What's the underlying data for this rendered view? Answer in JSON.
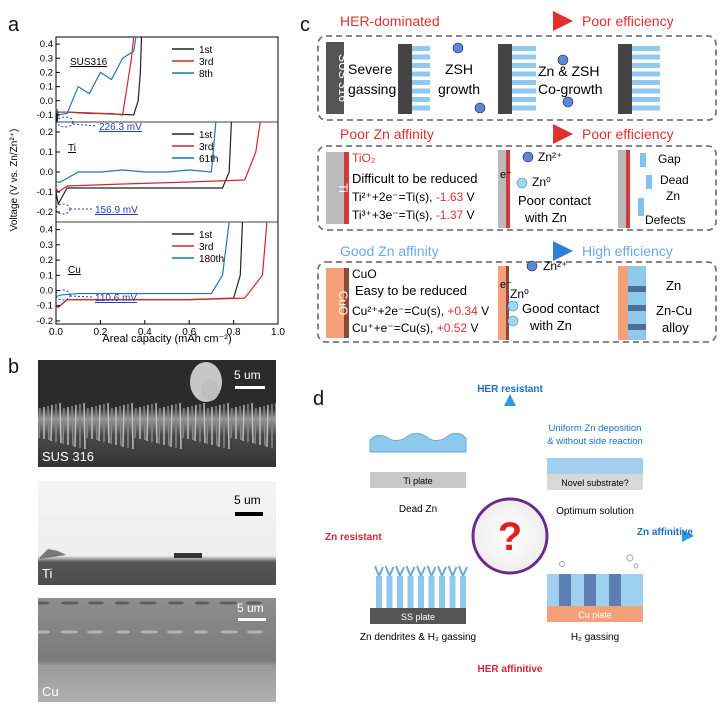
{
  "panel_labels": {
    "a": "a",
    "b": "b",
    "c": "c",
    "d": "d"
  },
  "panel_a": {
    "y_axis_label": "Voltage (V vs. Zn/Zn²⁺)",
    "x_axis_label": "Areal capacity (mAh cm⁻²)",
    "x_ticks": [
      "0.0",
      "0.2",
      "0.4",
      "0.6",
      "0.8",
      "1.0"
    ],
    "y_ticks_sus": [
      "0.4",
      "0.3",
      "0.2",
      "0.1",
      "0.0",
      "-0.1"
    ],
    "y_ticks_ti": [
      "0.2",
      "0.1",
      "0.0",
      "-0.1",
      "-0.2"
    ],
    "y_ticks_cu": [
      "0.4",
      "0.3",
      "0.2",
      "0.1",
      "0.0",
      "-0.1",
      "-0.2"
    ],
    "subplots": [
      {
        "name": "SUS316",
        "annotation": "226.3 mV",
        "legend": [
          "1st",
          "3rd",
          "8th"
        ]
      },
      {
        "name": "Ti",
        "annotation": "156.9 mV",
        "legend": [
          "1st",
          "3rd",
          "61th"
        ]
      },
      {
        "name": "Cu",
        "annotation": "110.6 mV",
        "legend": [
          "1st",
          "3rd",
          "180th"
        ]
      }
    ],
    "colors": {
      "first": "#222222",
      "third": "#d62728",
      "last": "#1f77b4",
      "annotation": "#1f3fbf"
    }
  },
  "chart_data": [
    {
      "type": "line",
      "title": "SUS316",
      "xlabel": "Areal capacity (mAh cm⁻²)",
      "ylabel": "Voltage (V vs. Zn/Zn²⁺)",
      "xlim": [
        0,
        1.0
      ],
      "ylim": [
        -0.15,
        0.45
      ],
      "series": [
        {
          "name": "1st",
          "x": [
            0.0,
            0.005,
            0.01,
            0.05,
            0.2,
            0.35,
            0.37,
            0.38,
            0.385
          ],
          "y": [
            -0.05,
            -0.2,
            -0.08,
            -0.08,
            -0.09,
            -0.1,
            0.0,
            0.2,
            0.45
          ]
        },
        {
          "name": "3rd",
          "x": [
            0.0,
            0.01,
            0.05,
            0.15,
            0.25,
            0.3,
            0.32,
            0.34,
            0.35
          ],
          "y": [
            -0.05,
            -0.08,
            -0.08,
            -0.09,
            -0.09,
            -0.1,
            0.1,
            0.3,
            0.45
          ]
        },
        {
          "name": "8th",
          "x": [
            0.0,
            0.01,
            0.05,
            0.1,
            0.15,
            0.2,
            0.25,
            0.3,
            0.35,
            0.36
          ],
          "y": [
            -0.05,
            -0.1,
            -0.09,
            0.1,
            0.05,
            0.2,
            0.15,
            0.3,
            0.35,
            0.45
          ]
        }
      ]
    },
    {
      "type": "line",
      "title": "Ti",
      "xlabel": "Areal capacity (mAh cm⁻²)",
      "ylabel": "Voltage (V vs. Zn/Zn²⁺)",
      "xlim": [
        0,
        1.0
      ],
      "ylim": [
        -0.25,
        0.25
      ],
      "series": [
        {
          "name": "1st",
          "x": [
            0.0,
            0.01,
            0.05,
            0.3,
            0.6,
            0.75,
            0.78,
            0.79
          ],
          "y": [
            -0.1,
            -0.16,
            -0.08,
            -0.08,
            -0.08,
            -0.08,
            0.0,
            0.25
          ]
        },
        {
          "name": "3rd",
          "x": [
            0.0,
            0.01,
            0.05,
            0.3,
            0.6,
            0.85,
            0.9,
            0.92
          ],
          "y": [
            -0.08,
            -0.1,
            -0.07,
            -0.06,
            -0.05,
            -0.04,
            0.1,
            0.25
          ]
        },
        {
          "name": "61th",
          "x": [
            0.0,
            0.02,
            0.1,
            0.2,
            0.3,
            0.4,
            0.5,
            0.6,
            0.7,
            0.72
          ],
          "y": [
            -0.05,
            -0.05,
            0.0,
            0.0,
            0.01,
            0.0,
            0.0,
            0.01,
            0.0,
            0.25
          ]
        }
      ]
    },
    {
      "type": "line",
      "title": "Cu",
      "xlabel": "Areal capacity (mAh cm⁻²)",
      "ylabel": "Voltage (V vs. Zn/Zn²⁺)",
      "xlim": [
        0,
        1.0
      ],
      "ylim": [
        -0.22,
        0.45
      ],
      "series": [
        {
          "name": "1st",
          "x": [
            0.0,
            0.01,
            0.05,
            0.3,
            0.6,
            0.8,
            0.83,
            0.84
          ],
          "y": [
            -0.1,
            -0.11,
            -0.06,
            -0.06,
            -0.06,
            -0.05,
            0.1,
            0.45
          ]
        },
        {
          "name": "3rd",
          "x": [
            0.0,
            0.01,
            0.05,
            0.3,
            0.6,
            0.85,
            0.93,
            0.95
          ],
          "y": [
            -0.1,
            -0.11,
            -0.06,
            -0.06,
            -0.06,
            -0.05,
            0.1,
            0.45
          ]
        },
        {
          "name": "180th",
          "x": [
            0.0,
            0.02,
            0.1,
            0.3,
            0.5,
            0.7,
            0.75,
            0.78
          ],
          "y": [
            -0.04,
            -0.03,
            -0.02,
            -0.02,
            -0.02,
            -0.02,
            0.1,
            0.45
          ]
        }
      ]
    }
  ],
  "panel_b": {
    "images": [
      {
        "label": "SUS 316",
        "scale": "5 um"
      },
      {
        "label": "Ti",
        "scale": "5 um"
      },
      {
        "label": "Cu",
        "scale": "5 um"
      }
    ]
  },
  "panel_c": {
    "rows": [
      {
        "left_head": "HER-dominated",
        "right_head": "Poor efficiency",
        "side": "SUS 316",
        "t1": "Severe",
        "t2": "gassing",
        "t3": "ZSH",
        "t4": "growth",
        "t5": "Zn & ZSH",
        "t6": "Co-growth"
      },
      {
        "left_head": "Poor Zn affinity",
        "right_head": "Poor efficiency",
        "side": "Ti",
        "oxide": "TiO₂",
        "t1": "Difficult to be reduced",
        "eq1": "Ti²⁺+2e⁻=Ti(s),",
        "v1": "-1.63",
        "eq2": "Ti³⁺+3e⁻=Ti(s),",
        "v2": "-1.37",
        "unit": "V",
        "e": "e⁻",
        "zn2": "Zn²⁺",
        "zn0": "Zn⁰",
        "c1": "Poor contact",
        "c2": "with Zn",
        "gap": "Gap",
        "dead": "Dead",
        "zn": "Zn",
        "defects": "Defects"
      },
      {
        "left_head": "Good Zn affinity",
        "right_head": "High efficiency",
        "side": "CuO",
        "oxide": "CuO",
        "t1": "Easy to be reduced",
        "eq1": "Cu²⁺+2e⁻=Cu(s),",
        "v1": "+0.34",
        "eq2": "Cu⁺+e⁻=Cu(s),",
        "v2": "+0.52",
        "unit": "V",
        "e": "e⁻",
        "zn2": "Zn²⁺",
        "zn0": "Zn⁰",
        "c1": "Good contact",
        "c2": "with Zn",
        "zn": "Zn",
        "alloy1": "Zn-Cu",
        "alloy2": "alloy"
      }
    ]
  },
  "panel_d": {
    "top": "HER resistant",
    "bottom": "HER affinitive",
    "left": "Zn resistant",
    "right": "Zn affinitive",
    "tl_plate": "Ti plate",
    "tl_caption": "Dead Zn",
    "tr_top1": "Uniform Zn deposition",
    "tr_top2": "& without side reaction",
    "tr_plate": "Novel substrate?",
    "tr_caption": "Optimum solution",
    "bl_plate": "SS plate",
    "bl_caption": "Zn dendrites & H₂ gassing",
    "br_plate": "Cu plate",
    "br_caption": "H₂ gassing"
  }
}
